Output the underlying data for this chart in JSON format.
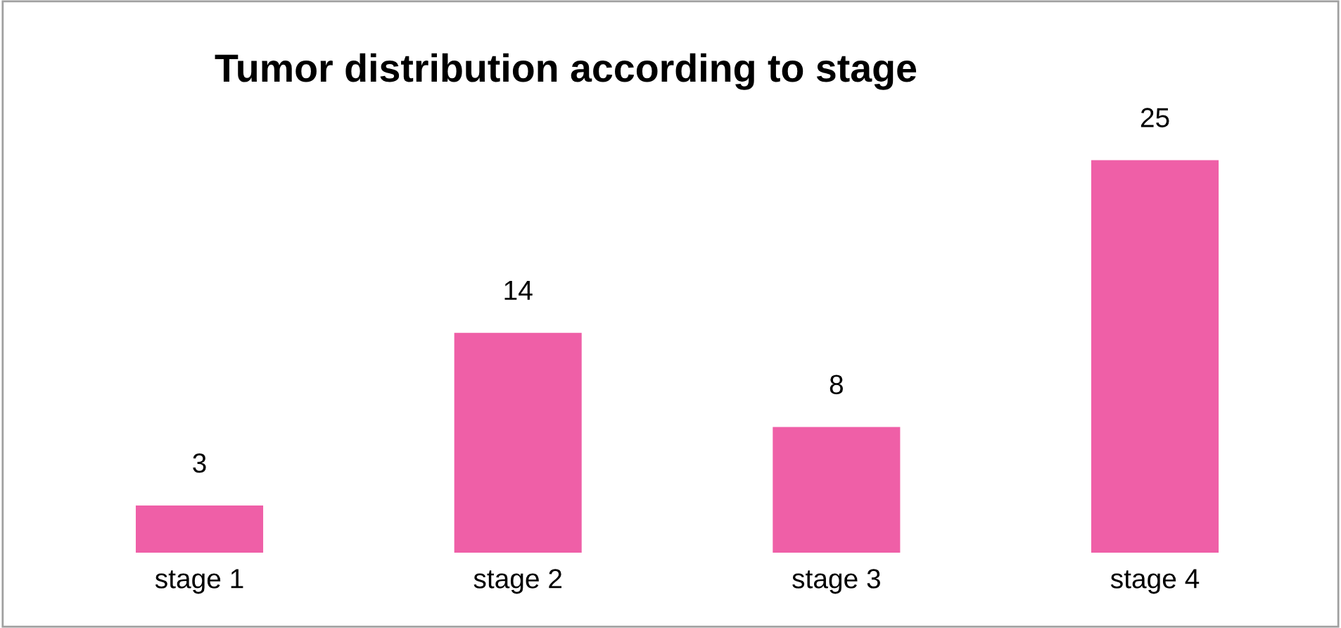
{
  "chart_data": {
    "type": "bar",
    "title": "Tumor distribution according to stage",
    "categories": [
      "stage 1",
      "stage 2",
      "stage 3",
      "stage 4"
    ],
    "values": [
      3,
      14,
      8,
      25
    ],
    "color": "#ef5fa7",
    "data_labels": true,
    "grid": false,
    "legend": false
  }
}
